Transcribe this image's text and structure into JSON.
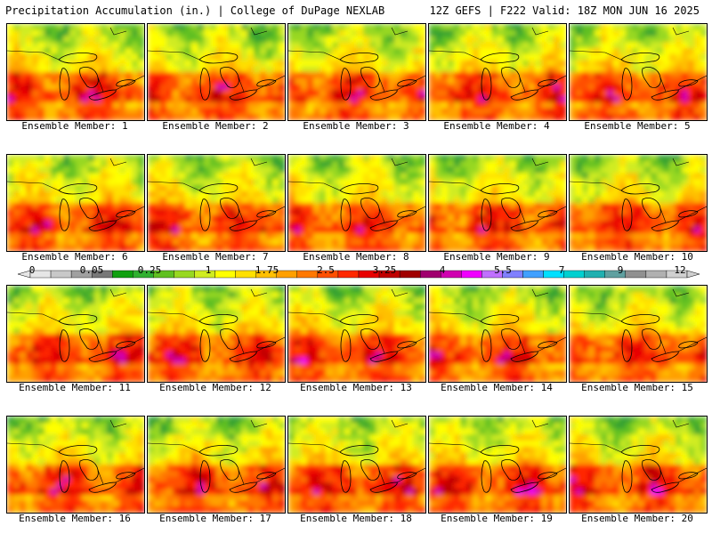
{
  "header": {
    "left_title": "Precipitation Accumulation (in.) | College of DuPage NEXLAB",
    "right_title": "12Z GEFS | F222 Valid: 18Z MON JUN 16 2025"
  },
  "legend": {
    "tick_labels": [
      "0",
      "0.05",
      "0.25",
      "1",
      "1.75",
      "2.5",
      "3.25",
      "4",
      "5.5",
      "7",
      "9",
      "12"
    ],
    "colors": [
      "#e6e6e6",
      "#c8c8c8",
      "#a0a0a0",
      "#787878",
      "#10a010",
      "#30b030",
      "#60c020",
      "#98d820",
      "#d0ec20",
      "#ffff00",
      "#ffe000",
      "#ffc000",
      "#ffa000",
      "#ff7800",
      "#ff5000",
      "#ff2800",
      "#e80000",
      "#c00000",
      "#a00000",
      "#a0006e",
      "#d000b0",
      "#f000ff",
      "#c070ff",
      "#8080ff",
      "#40a0ff",
      "#00e0ff",
      "#00d0d0",
      "#20b0b0",
      "#60a0a0",
      "#909090",
      "#b0b0b0",
      "#d0d0d0"
    ]
  },
  "panels": [
    {
      "label": "Ensemble Member: 1"
    },
    {
      "label": "Ensemble Member: 2"
    },
    {
      "label": "Ensemble Member: 3"
    },
    {
      "label": "Ensemble Member: 4"
    },
    {
      "label": "Ensemble Member: 5"
    },
    {
      "label": "Ensemble Member: 6"
    },
    {
      "label": "Ensemble Member: 7"
    },
    {
      "label": "Ensemble Member: 8"
    },
    {
      "label": "Ensemble Member: 9"
    },
    {
      "label": "Ensemble Member: 10"
    },
    {
      "label": "Ensemble Member: 11"
    },
    {
      "label": "Ensemble Member: 12"
    },
    {
      "label": "Ensemble Member: 13"
    },
    {
      "label": "Ensemble Member: 14"
    },
    {
      "label": "Ensemble Member: 15"
    },
    {
      "label": "Ensemble Member: 16"
    },
    {
      "label": "Ensemble Member: 17"
    },
    {
      "label": "Ensemble Member: 18"
    },
    {
      "label": "Ensemble Member: 19"
    },
    {
      "label": "Ensemble Member: 20"
    }
  ]
}
